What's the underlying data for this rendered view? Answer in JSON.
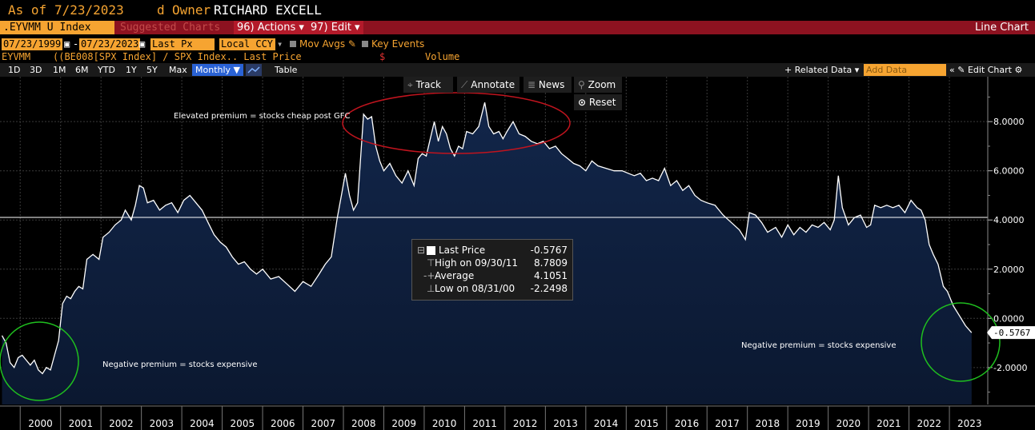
{
  "header": {
    "as_of_label": "As of",
    "as_of_date": "7/23/2023",
    "owner_prefix": "d",
    "owner_label": "Owner",
    "owner_name": "RICHARD EXCELL"
  },
  "toolbar": {
    "ticker": ".EYVMM U Index",
    "suggested": "Suggested Charts",
    "actions": "96) Actions ▾",
    "edit": "97) Edit ▾",
    "view_name": "Line Chart"
  },
  "settings": {
    "start_date": "07/23/1999",
    "end_date": "07/23/2023",
    "field": "Last Px",
    "currency": "Local CCY",
    "mov_avgs": "Mov Avgs",
    "key_events": "Key Events"
  },
  "legend": {
    "ticker": "EYVMM",
    "formula": "((BE008[SPX Index] / SPX Index.. Last Price",
    "currency_sym": "$",
    "volume": "Volume"
  },
  "ranges": [
    "1D",
    "3D",
    "1M",
    "6M",
    "YTD",
    "1Y",
    "5Y",
    "Max"
  ],
  "frequency": "Monthly ▼",
  "table_label": "Table",
  "right_tools": {
    "related": "+ Related Data ▾",
    "add_data_placeholder": "Add Data",
    "edit_chart": "« ✎ Edit Chart ⚙"
  },
  "chart_tools": {
    "track": "Track",
    "annotate": "Annotate",
    "news": "News",
    "zoom": "Zoom",
    "reset": "Reset"
  },
  "tooltip": {
    "last_label": "Last Price",
    "last_value": "-0.5767",
    "high_label": "High on 09/30/11",
    "high_value": "8.7809",
    "avg_label": "Average",
    "avg_value": "4.1051",
    "low_label": "Low on 08/31/00",
    "low_value": "-2.2498"
  },
  "colors": {
    "accent_orange": "#f6a431",
    "toolbar_red": "#8d1220",
    "area_fill": "#0e1d3c",
    "line": "#ffffff",
    "annotation_red": "#c0141e",
    "annotation_green": "#1fbf1f"
  },
  "chart_data": {
    "type": "area",
    "title": "",
    "xlabel": "",
    "ylabel": "",
    "ylim": [
      -3.5,
      9.5
    ],
    "yticks": [
      "-2.0000",
      "0.0000",
      "2.0000",
      "4.0000",
      "6.0000",
      "8.0000"
    ],
    "xticks": [
      "2000",
      "2001",
      "2002",
      "2003",
      "2004",
      "2005",
      "2006",
      "2007",
      "2008",
      "2009",
      "2010",
      "2011",
      "2012",
      "2013",
      "2014",
      "2015",
      "2016",
      "2017",
      "2018",
      "2019",
      "2020",
      "2021",
      "2022",
      "2023"
    ],
    "last_value_label": "-0.5767",
    "average_line": 4.1051,
    "grid": true,
    "annotations": [
      "Elevated premium  = stocks cheap post GFC",
      "Negative premium = stocks expensive",
      "Negative premium = stocks expensive"
    ],
    "series": [
      {
        "x": [
          1999.55,
          1999.65,
          1999.75,
          1999.85,
          1999.95,
          2000.05,
          2000.15,
          2000.25,
          2000.35,
          2000.45,
          2000.55,
          2000.65,
          2000.75,
          2000.85,
          2000.95,
          2001.05,
          2001.15,
          2001.25,
          2001.35,
          2001.45,
          2001.55,
          2001.65,
          2001.8,
          2001.95,
          2002.05,
          2002.2,
          2002.35,
          2002.5,
          2002.6,
          2002.75,
          2002.85,
          2002.95,
          2003.05,
          2003.15,
          2003.3,
          2003.45,
          2003.6,
          2003.75,
          2003.9,
          2004.05,
          2004.2,
          2004.35,
          2004.5,
          2004.65,
          2004.8,
          2004.95,
          2005.1,
          2005.25,
          2005.4,
          2005.55,
          2005.7,
          2005.85,
          2006.0,
          2006.2,
          2006.4,
          2006.6,
          2006.8,
          2007.0,
          2007.2,
          2007.4,
          2007.55,
          2007.7,
          2007.85,
          2007.95,
          2008.05,
          2008.15,
          2008.25,
          2008.35,
          2008.5,
          2008.6,
          2008.7,
          2008.8,
          2008.9,
          2009.0,
          2009.15,
          2009.3,
          2009.45,
          2009.6,
          2009.75,
          2009.85,
          2009.95,
          2010.05,
          2010.15,
          2010.25,
          2010.35,
          2010.45,
          2010.55,
          2010.65,
          2010.75,
          2010.85,
          2010.95,
          2011.05,
          2011.2,
          2011.35,
          2011.5,
          2011.6,
          2011.72,
          2011.85,
          2011.95,
          2012.05,
          2012.2,
          2012.35,
          2012.5,
          2012.65,
          2012.8,
          2012.95,
          2013.1,
          2013.25,
          2013.4,
          2013.55,
          2013.7,
          2013.85,
          2014.0,
          2014.15,
          2014.3,
          2014.5,
          2014.7,
          2014.9,
          2015.05,
          2015.2,
          2015.35,
          2015.5,
          2015.65,
          2015.8,
          2015.95,
          2016.1,
          2016.25,
          2016.4,
          2016.55,
          2016.7,
          2016.85,
          2017.0,
          2017.2,
          2017.4,
          2017.6,
          2017.8,
          2017.95,
          2018.05,
          2018.2,
          2018.35,
          2018.5,
          2018.7,
          2018.85,
          2019.0,
          2019.15,
          2019.3,
          2019.45,
          2019.6,
          2019.75,
          2019.9,
          2020.05,
          2020.15,
          2020.25,
          2020.35,
          2020.5,
          2020.65,
          2020.8,
          2020.95,
          2021.05,
          2021.15,
          2021.3,
          2021.45,
          2021.6,
          2021.75,
          2021.9,
          2022.05,
          2022.2,
          2022.3,
          2022.4,
          2022.5,
          2022.6,
          2022.72,
          2022.85,
          2022.95,
          2023.1,
          2023.25,
          2023.4,
          2023.55
        ],
        "y": [
          -0.7,
          -1.0,
          -1.8,
          -2.0,
          -1.6,
          -1.5,
          -1.7,
          -1.9,
          -1.7,
          -2.1,
          -2.25,
          -2.0,
          -2.1,
          -1.5,
          -0.9,
          0.6,
          0.9,
          0.8,
          1.1,
          1.3,
          1.2,
          2.4,
          2.6,
          2.4,
          3.3,
          3.5,
          3.8,
          4.0,
          4.4,
          4.0,
          4.6,
          5.4,
          5.3,
          4.7,
          4.8,
          4.4,
          4.6,
          4.7,
          4.3,
          4.8,
          5.0,
          4.7,
          4.4,
          3.9,
          3.4,
          3.1,
          2.9,
          2.5,
          2.2,
          2.3,
          2.0,
          1.8,
          2.0,
          1.6,
          1.7,
          1.4,
          1.1,
          1.5,
          1.3,
          1.8,
          2.2,
          2.5,
          4.1,
          5.0,
          5.9,
          5.0,
          4.4,
          4.7,
          8.3,
          8.1,
          8.2,
          7.0,
          6.4,
          6.0,
          6.3,
          5.8,
          5.5,
          6.0,
          5.4,
          6.5,
          6.7,
          6.6,
          7.3,
          8.0,
          7.2,
          7.8,
          7.5,
          6.9,
          6.6,
          7.0,
          6.9,
          7.6,
          7.5,
          7.8,
          8.78,
          7.8,
          7.5,
          7.6,
          7.3,
          7.6,
          8.0,
          7.5,
          7.4,
          7.2,
          7.1,
          7.2,
          6.9,
          7.0,
          6.7,
          6.5,
          6.3,
          6.2,
          6.0,
          6.4,
          6.2,
          6.1,
          6.0,
          6.0,
          5.9,
          5.8,
          5.9,
          5.6,
          5.7,
          5.6,
          6.1,
          5.4,
          5.6,
          5.2,
          5.4,
          5.0,
          4.8,
          4.7,
          4.6,
          4.2,
          3.9,
          3.6,
          3.2,
          4.3,
          4.2,
          3.9,
          3.5,
          3.7,
          3.3,
          3.8,
          3.4,
          3.7,
          3.5,
          3.8,
          3.7,
          3.9,
          3.6,
          4.0,
          5.8,
          4.5,
          3.8,
          4.1,
          4.2,
          3.7,
          3.8,
          4.6,
          4.5,
          4.6,
          4.5,
          4.6,
          4.3,
          4.8,
          4.5,
          4.4,
          4.0,
          3.0,
          2.6,
          2.2,
          1.3,
          1.1,
          0.5,
          0.1,
          -0.3,
          -0.58
        ]
      }
    ]
  }
}
